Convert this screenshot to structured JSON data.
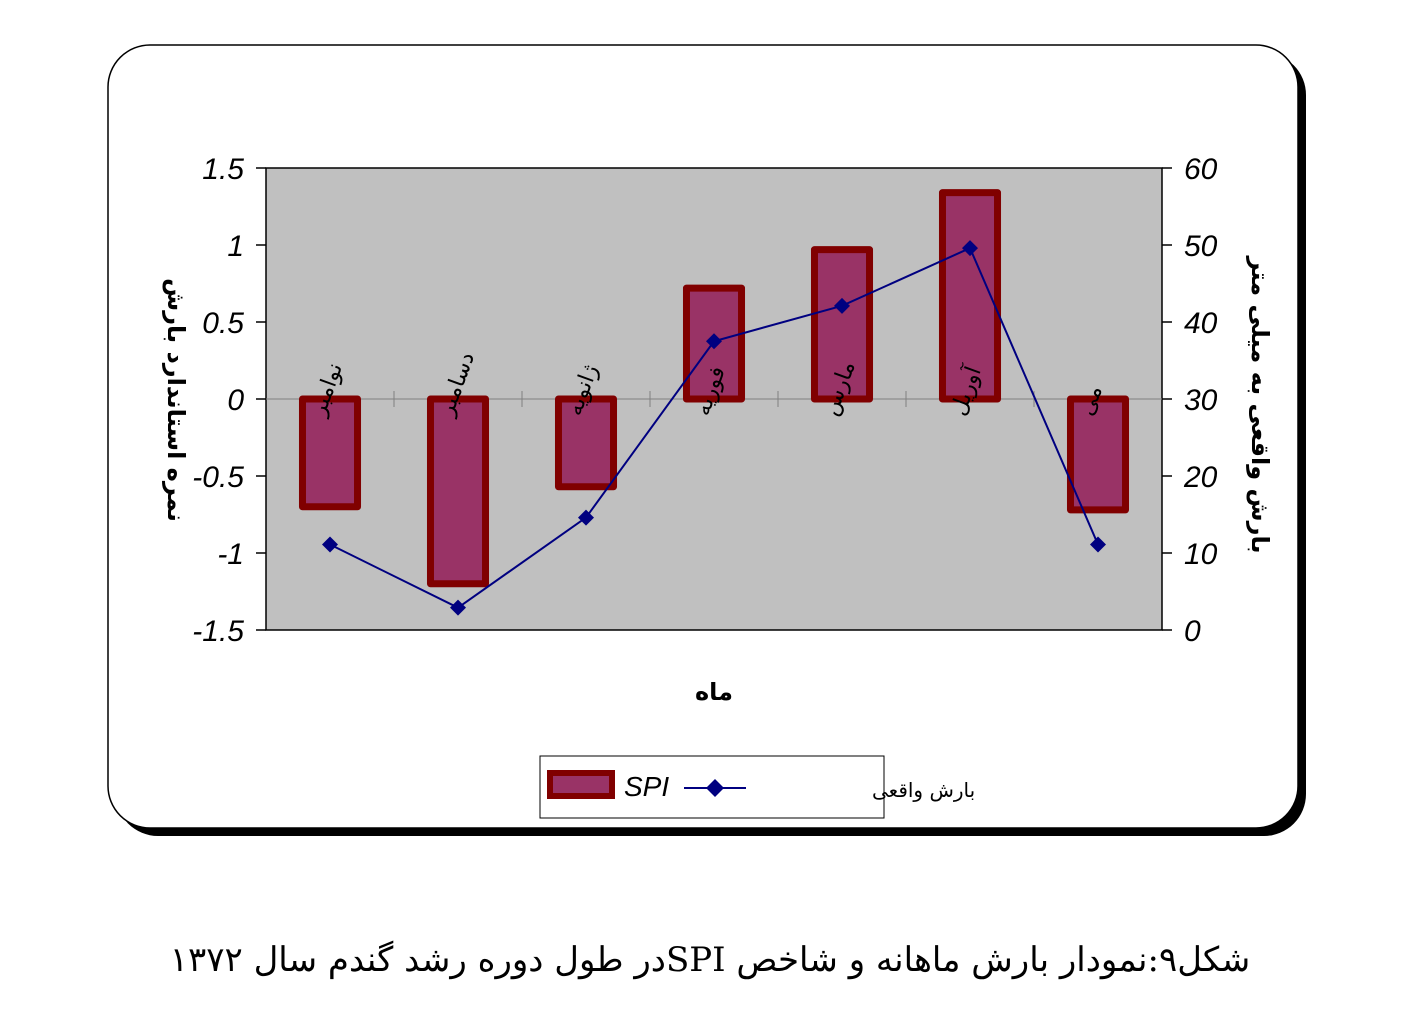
{
  "caption": "شکل۹:نمودار بارش ماهانه و شاخص SPIدر طول دوره رشد گندم سال ۱۳۷۲",
  "colors": {
    "plot_bg": "#c0c0c0",
    "bar_fill": "#993366",
    "bar_border": "#800000",
    "line": "#000080",
    "frame_shadow": "#000000"
  },
  "chart_data": {
    "type": "bar",
    "title": "",
    "xlabel": "ماه",
    "ylabel": "نمره استاندارد بارش",
    "y2label": "بارش واقعی به میلی متر",
    "categories": [
      "نوامبر",
      "دسامبر",
      "ژانویه",
      "فوریه",
      "مارس",
      "آوریل",
      "می"
    ],
    "ylim": [
      -1.5,
      1.5
    ],
    "y2lim": [
      0,
      60
    ],
    "yticks": [
      "1.5",
      "1",
      "0.5",
      "0",
      "-0.5",
      "-1",
      "-1.5"
    ],
    "y2ticks": [
      "60",
      "50",
      "40",
      "30",
      "20",
      "10",
      "0"
    ],
    "grid": false,
    "legend_position": "bottom",
    "series": [
      {
        "name": "SPI",
        "type": "bar",
        "axis": "left",
        "values": [
          -0.7,
          -1.2,
          -0.57,
          0.72,
          0.97,
          1.34,
          -0.72
        ]
      },
      {
        "name": "بارش واقعی",
        "type": "line",
        "axis": "right",
        "marker": "diamond",
        "values": [
          11.1,
          2.9,
          14.6,
          37.5,
          42.1,
          49.6,
          11.1
        ]
      }
    ]
  }
}
